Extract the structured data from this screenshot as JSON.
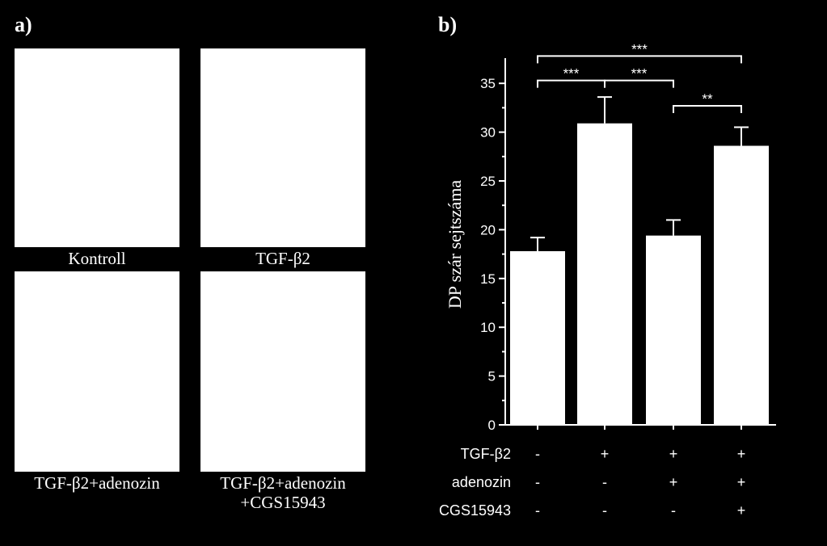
{
  "panel_a": {
    "label": "a)",
    "images": [
      {
        "caption": "Kontroll"
      },
      {
        "caption": "TGF-β2"
      },
      {
        "caption": "TGF-β2+adenozin"
      },
      {
        "caption": "TGF-β2+adenozin\n+CGS15943"
      }
    ]
  },
  "panel_b": {
    "label": "b)"
  },
  "chart_data": {
    "type": "bar",
    "ylabel": "DP szár sejtszáma",
    "ylim": [
      0,
      37
    ],
    "yticks": [
      0,
      5,
      10,
      15,
      20,
      25,
      30,
      35
    ],
    "bar_color": "#ffffff",
    "background": "#000000",
    "values": [
      17.8,
      30.9,
      19.4,
      28.6
    ],
    "errors": [
      1.4,
      2.7,
      1.6,
      1.9
    ],
    "conditions": [
      {
        "label": "TGF-β2",
        "signs": [
          "-",
          "+",
          "+",
          "+"
        ]
      },
      {
        "label": "adenozin",
        "signs": [
          "-",
          "-",
          "+",
          "+"
        ]
      },
      {
        "label": "CGS15943",
        "signs": [
          "-",
          "-",
          "-",
          "+"
        ]
      }
    ],
    "significance": [
      {
        "from": 0,
        "to": 1,
        "text": "***",
        "y": 35.3
      },
      {
        "from": 1,
        "to": 2,
        "text": "***",
        "y": 35.3
      },
      {
        "from": 0,
        "to": 3,
        "text": "***",
        "y": 37.8
      },
      {
        "from": 2,
        "to": 3,
        "text": "**",
        "y": 32.7
      }
    ]
  }
}
